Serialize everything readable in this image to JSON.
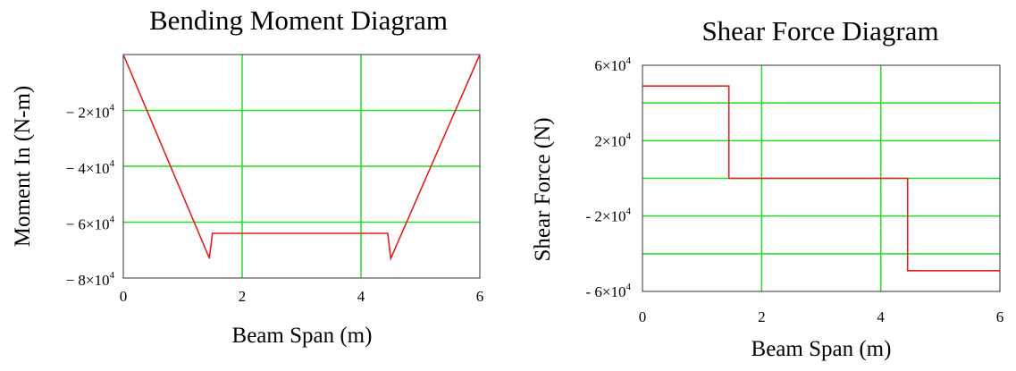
{
  "chart_data": [
    {
      "type": "line",
      "title": "Bending Moment Diagram",
      "xlabel": "Beam Span (m)",
      "ylabel": "Moment In (N-m)",
      "xlim": [
        0,
        6
      ],
      "ylim": [
        -80000,
        0
      ],
      "x_ticks": [
        {
          "value": 0,
          "label": "0"
        },
        {
          "value": 2,
          "label": "2"
        },
        {
          "value": 4,
          "label": "4"
        },
        {
          "value": 6,
          "label": "6"
        }
      ],
      "y_ticks": [
        {
          "value": -20000,
          "label": "− 2×10",
          "exp": "4"
        },
        {
          "value": -40000,
          "label": "− 4×10",
          "exp": "4"
        },
        {
          "value": -60000,
          "label": "− 6×10",
          "exp": "4"
        },
        {
          "value": -80000,
          "label": "− 8×10",
          "exp": "4"
        }
      ],
      "x_gridlines": [
        2,
        4
      ],
      "y_gridlines": [
        -20000,
        -40000,
        -60000
      ],
      "grid": true,
      "grid_color": "#22dd22",
      "series": [
        {
          "color": "#e02020",
          "points": [
            [
              0,
              0
            ],
            [
              1.45,
              -73000
            ],
            [
              1.45,
              -72500
            ],
            [
              1.5,
              -64000
            ],
            [
              4.45,
              -64000
            ],
            [
              4.5,
              -73000
            ],
            [
              6,
              0
            ]
          ]
        }
      ]
    },
    {
      "type": "line",
      "title": "Shear Force Diagram",
      "xlabel": "Beam Span (m)",
      "ylabel": "Shear Force (N)",
      "xlim": [
        0,
        6
      ],
      "ylim": [
        -60000,
        60000
      ],
      "x_ticks": [
        {
          "value": 0,
          "label": "0"
        },
        {
          "value": 2,
          "label": "2"
        },
        {
          "value": 4,
          "label": "4"
        },
        {
          "value": 6,
          "label": "6"
        }
      ],
      "y_ticks": [
        {
          "value": 60000,
          "label": "6×10",
          "exp": "4"
        },
        {
          "value": 20000,
          "label": "2×10",
          "exp": "4"
        },
        {
          "value": -20000,
          "label": "- 2×10",
          "exp": "4"
        },
        {
          "value": -60000,
          "label": "- 6×10",
          "exp": "4"
        }
      ],
      "x_gridlines": [
        2,
        4
      ],
      "y_gridlines": [
        40000,
        20000,
        0,
        -20000,
        -40000
      ],
      "grid": true,
      "grid_color": "#22dd22",
      "series": [
        {
          "color": "#e02020",
          "points": [
            [
              0,
              49000
            ],
            [
              1.45,
              49000
            ],
            [
              1.45,
              0
            ],
            [
              4.45,
              0
            ],
            [
              4.45,
              -49000
            ],
            [
              6,
              -49000
            ]
          ]
        }
      ]
    }
  ]
}
